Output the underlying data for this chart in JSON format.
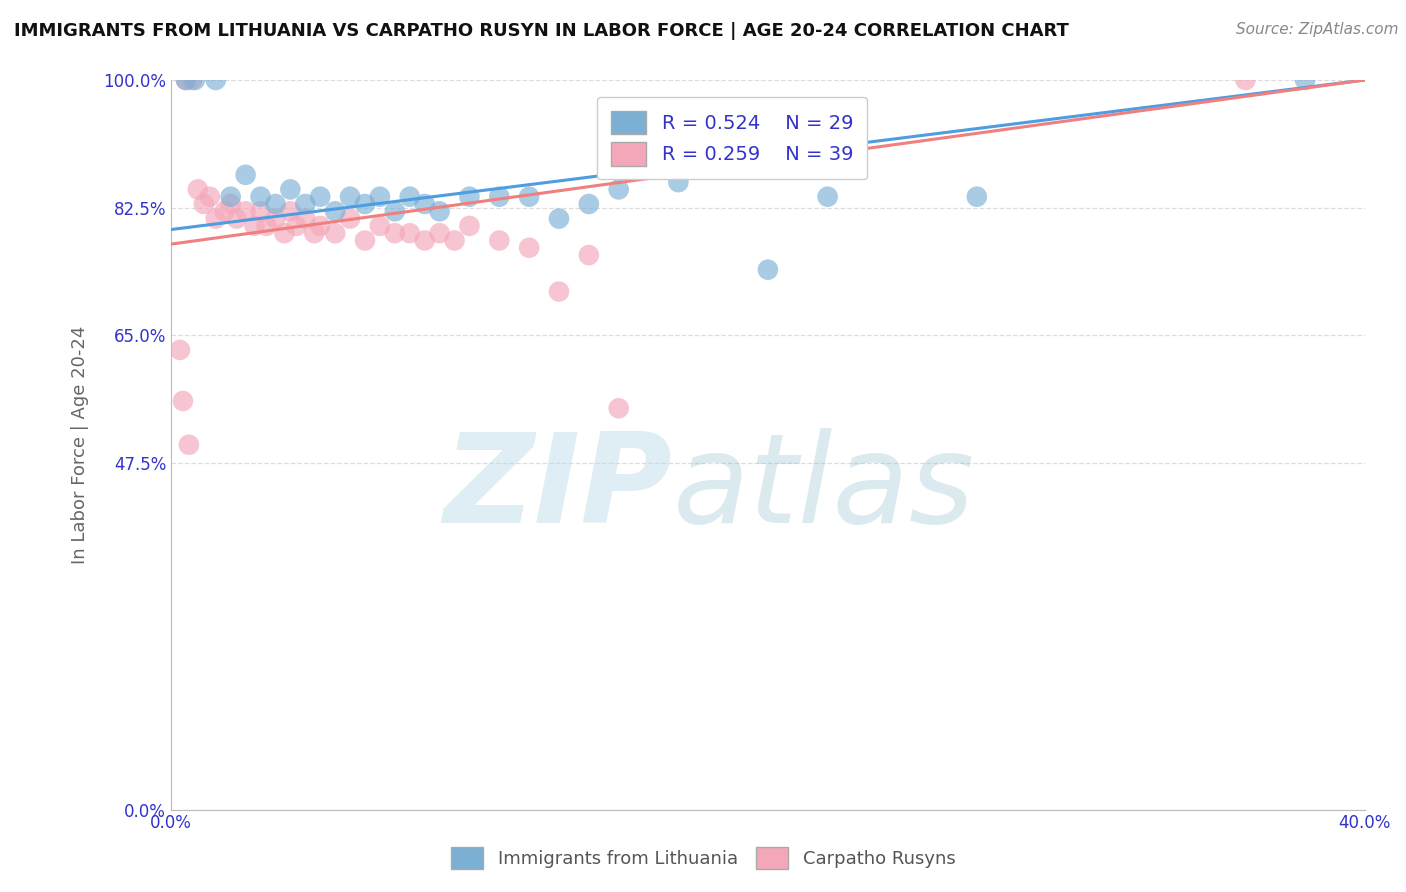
{
  "title": "IMMIGRANTS FROM LITHUANIA VS CARPATHO RUSYN IN LABOR FORCE | AGE 20-24 CORRELATION CHART",
  "source": "Source: ZipAtlas.com",
  "ylabel": "In Labor Force | Age 20-24",
  "xlim": [
    0.0,
    0.4
  ],
  "ylim": [
    0.0,
    1.0
  ],
  "x_ticks": [
    0.0,
    0.1,
    0.2,
    0.3,
    0.4
  ],
  "x_tick_labels": [
    "0.0%",
    "",
    "",
    "",
    "40.0%"
  ],
  "y_ticks": [
    0.0,
    0.475,
    0.65,
    0.825,
    1.0
  ],
  "y_tick_labels": [
    "0.0%",
    "47.5%",
    "65.0%",
    "82.5%",
    "100.0%"
  ],
  "blue_color": "#7BAFD4",
  "pink_color": "#F4A7B9",
  "blue_line_color": "#4D9DE0",
  "pink_line_color": "#F08080",
  "legend_R_blue": "R = 0.524",
  "legend_N_blue": "N = 29",
  "legend_R_pink": "R = 0.259",
  "legend_N_pink": "N = 39",
  "legend_label_blue": "Immigrants from Lithuania",
  "legend_label_pink": "Carpatho Rusyns",
  "watermark_zip": "ZIP",
  "watermark_atlas": "atlas",
  "background_color": "#FFFFFF",
  "grid_color": "#DDDDDD",
  "blue_x": [
    0.005,
    0.008,
    0.015,
    0.02,
    0.025,
    0.03,
    0.035,
    0.04,
    0.045,
    0.05,
    0.055,
    0.06,
    0.065,
    0.07,
    0.075,
    0.08,
    0.085,
    0.09,
    0.1,
    0.11,
    0.12,
    0.13,
    0.14,
    0.15,
    0.17,
    0.2,
    0.22,
    0.27,
    0.38
  ],
  "blue_y": [
    1.0,
    1.0,
    1.0,
    0.84,
    0.87,
    0.84,
    0.83,
    0.85,
    0.83,
    0.84,
    0.82,
    0.84,
    0.83,
    0.84,
    0.82,
    0.84,
    0.83,
    0.82,
    0.84,
    0.84,
    0.84,
    0.81,
    0.83,
    0.85,
    0.86,
    0.74,
    0.84,
    0.84,
    1.0
  ],
  "pink_x": [
    0.005,
    0.007,
    0.009,
    0.011,
    0.013,
    0.015,
    0.018,
    0.02,
    0.022,
    0.025,
    0.028,
    0.03,
    0.032,
    0.035,
    0.038,
    0.04,
    0.042,
    0.045,
    0.048,
    0.05,
    0.055,
    0.06,
    0.065,
    0.07,
    0.075,
    0.08,
    0.085,
    0.09,
    0.095,
    0.1,
    0.11,
    0.12,
    0.13,
    0.14,
    0.15,
    0.003,
    0.004,
    0.006,
    0.36
  ],
  "pink_y": [
    1.0,
    1.0,
    0.85,
    0.83,
    0.84,
    0.81,
    0.82,
    0.83,
    0.81,
    0.82,
    0.8,
    0.82,
    0.8,
    0.81,
    0.79,
    0.82,
    0.8,
    0.81,
    0.79,
    0.8,
    0.79,
    0.81,
    0.78,
    0.8,
    0.79,
    0.79,
    0.78,
    0.79,
    0.78,
    0.8,
    0.78,
    0.77,
    0.71,
    0.76,
    0.55,
    0.63,
    0.56,
    0.5,
    1.0
  ],
  "blue_line_x0": 0.0,
  "blue_line_y0": 0.795,
  "blue_line_x1": 0.4,
  "blue_line_y1": 1.0,
  "pink_line_x0": 0.0,
  "pink_line_y0": 0.775,
  "pink_line_x1": 0.4,
  "pink_line_y1": 1.0
}
